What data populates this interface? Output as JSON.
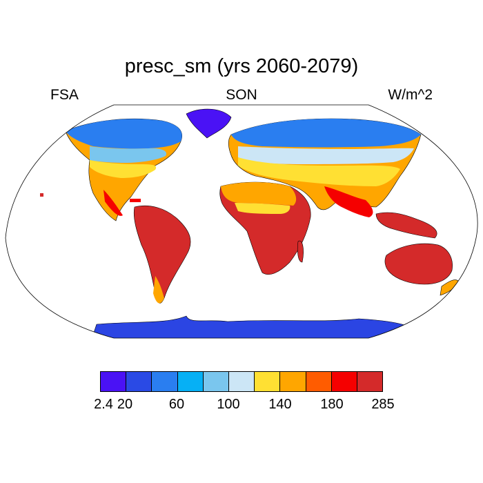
{
  "figure": {
    "title": "presc_sm (yrs 2060-2079)",
    "left_label": "FSA",
    "center_label": "SON",
    "right_label": "W/m^2"
  },
  "colorbar": {
    "colors": [
      "#4a12f5",
      "#2a4ae5",
      "#2a7ef0",
      "#06b0f5",
      "#7ac6ee",
      "#cce6f6",
      "#ffe033",
      "#ffa600",
      "#ff5c00",
      "#f50000",
      "#d42a2a"
    ],
    "tick_labels": [
      "2.4",
      "20",
      "60",
      "100",
      "140",
      "180",
      "285"
    ]
  },
  "map_colors": {
    "ocean": "#ffffff",
    "antarctica": "#2b45e3",
    "greenland": "#4a12f5",
    "polar_blue": "#2a7ef0",
    "mid_blue": "#7ac6ee",
    "pale_blue": "#cce6f6",
    "yellow": "#ffe033",
    "orange": "#ffa600",
    "dark_orange": "#ff5c00",
    "red": "#f50000",
    "dark_red": "#d42a2a"
  }
}
